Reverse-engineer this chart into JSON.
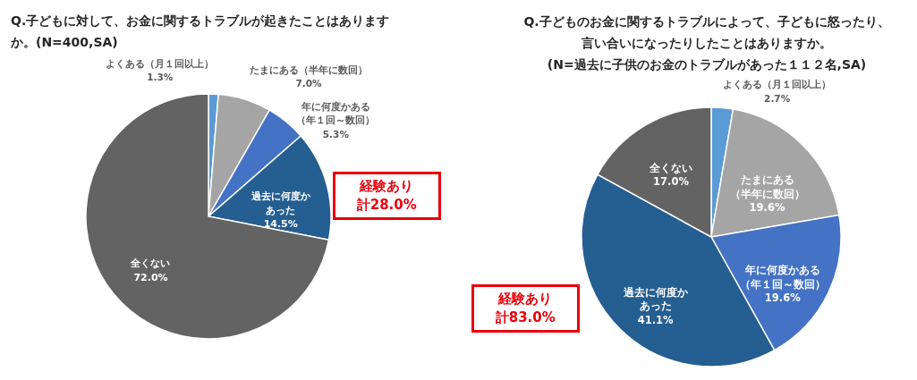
{
  "chart_data": [
    {
      "type": "pie",
      "title": "Q.子どもに対して、お金に関するトラブルが起きたことはありますか。(N=400,SA)",
      "categories": [
        "よくある（月１回以上）",
        "たまにある（半年に数回）",
        "年に何度かある（年１回～数回）",
        "過去に何度かあった",
        "全くない"
      ],
      "values": [
        1.3,
        7.0,
        5.3,
        14.5,
        72.0
      ],
      "colors": [
        "#5b9bd5",
        "#a5a5a5",
        "#4472c4",
        "#255e91",
        "#636363"
      ],
      "value_labels": [
        "1.3%",
        "7.0%",
        "5.3%",
        "14.5%",
        "72.0%"
      ],
      "annotations": [
        "経験あり計28.0%"
      ]
    },
    {
      "type": "pie",
      "title": "Q.子どものお金に関するトラブルによって、子どもに怒ったり、言い合いになったりしたことはありますか。(N=過去に子供のお金のトラブルがあった１１２名,SA)",
      "categories": [
        "よくある（月１回以上）",
        "たまにある（半年に数回）",
        "年に何度かある（年１回～数回）",
        "過去に何度かあった",
        "全くない"
      ],
      "values": [
        2.7,
        19.6,
        19.6,
        41.1,
        17.0
      ],
      "colors": [
        "#5b9bd5",
        "#a5a5a5",
        "#4472c4",
        "#255e91",
        "#636363"
      ],
      "value_labels": [
        "2.7%",
        "19.6%",
        "19.6%",
        "41.1%",
        "17.0%"
      ],
      "annotations": [
        "経験あり計83.0%"
      ]
    }
  ]
}
